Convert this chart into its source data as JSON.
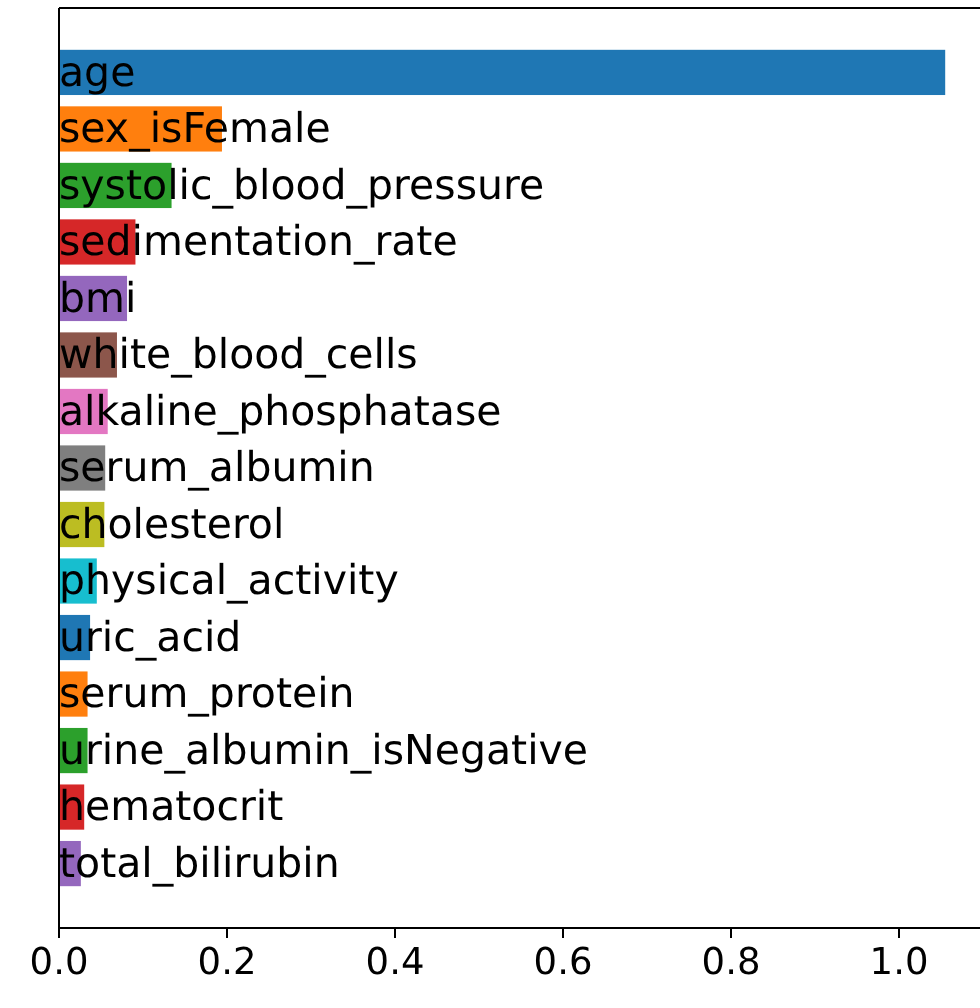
{
  "chart_data": {
    "type": "bar",
    "orientation": "horizontal",
    "categories": [
      "age",
      "sex_isFemale",
      "systolic_blood_pressure",
      "sedimentation_rate",
      "bmi",
      "white_blood_cells",
      "alkaline_phosphatase",
      "serum_albumin",
      "cholesterol",
      "physical_activity",
      "uric_acid",
      "serum_protein",
      "urine_albumin_isNegative",
      "hematocrit",
      "total_bilirubin"
    ],
    "values": [
      1.055,
      0.194,
      0.134,
      0.091,
      0.081,
      0.069,
      0.058,
      0.055,
      0.054,
      0.045,
      0.037,
      0.034,
      0.034,
      0.03,
      0.026
    ],
    "colors": [
      "#1f77b4",
      "#ff7f0e",
      "#2ca02c",
      "#d62728",
      "#9467bd",
      "#8c564b",
      "#e377c2",
      "#7f7f7f",
      "#bcbd22",
      "#17becf",
      "#1f77b4",
      "#ff7f0e",
      "#2ca02c",
      "#d62728",
      "#9467bd"
    ],
    "xlim": [
      0,
      1.1
    ],
    "xticks": [
      {
        "value": 0,
        "label": "0.0"
      },
      0.2,
      0.4,
      0.6,
      0.8,
      {
        "value": 1,
        "label": "1.0"
      }
    ]
  }
}
